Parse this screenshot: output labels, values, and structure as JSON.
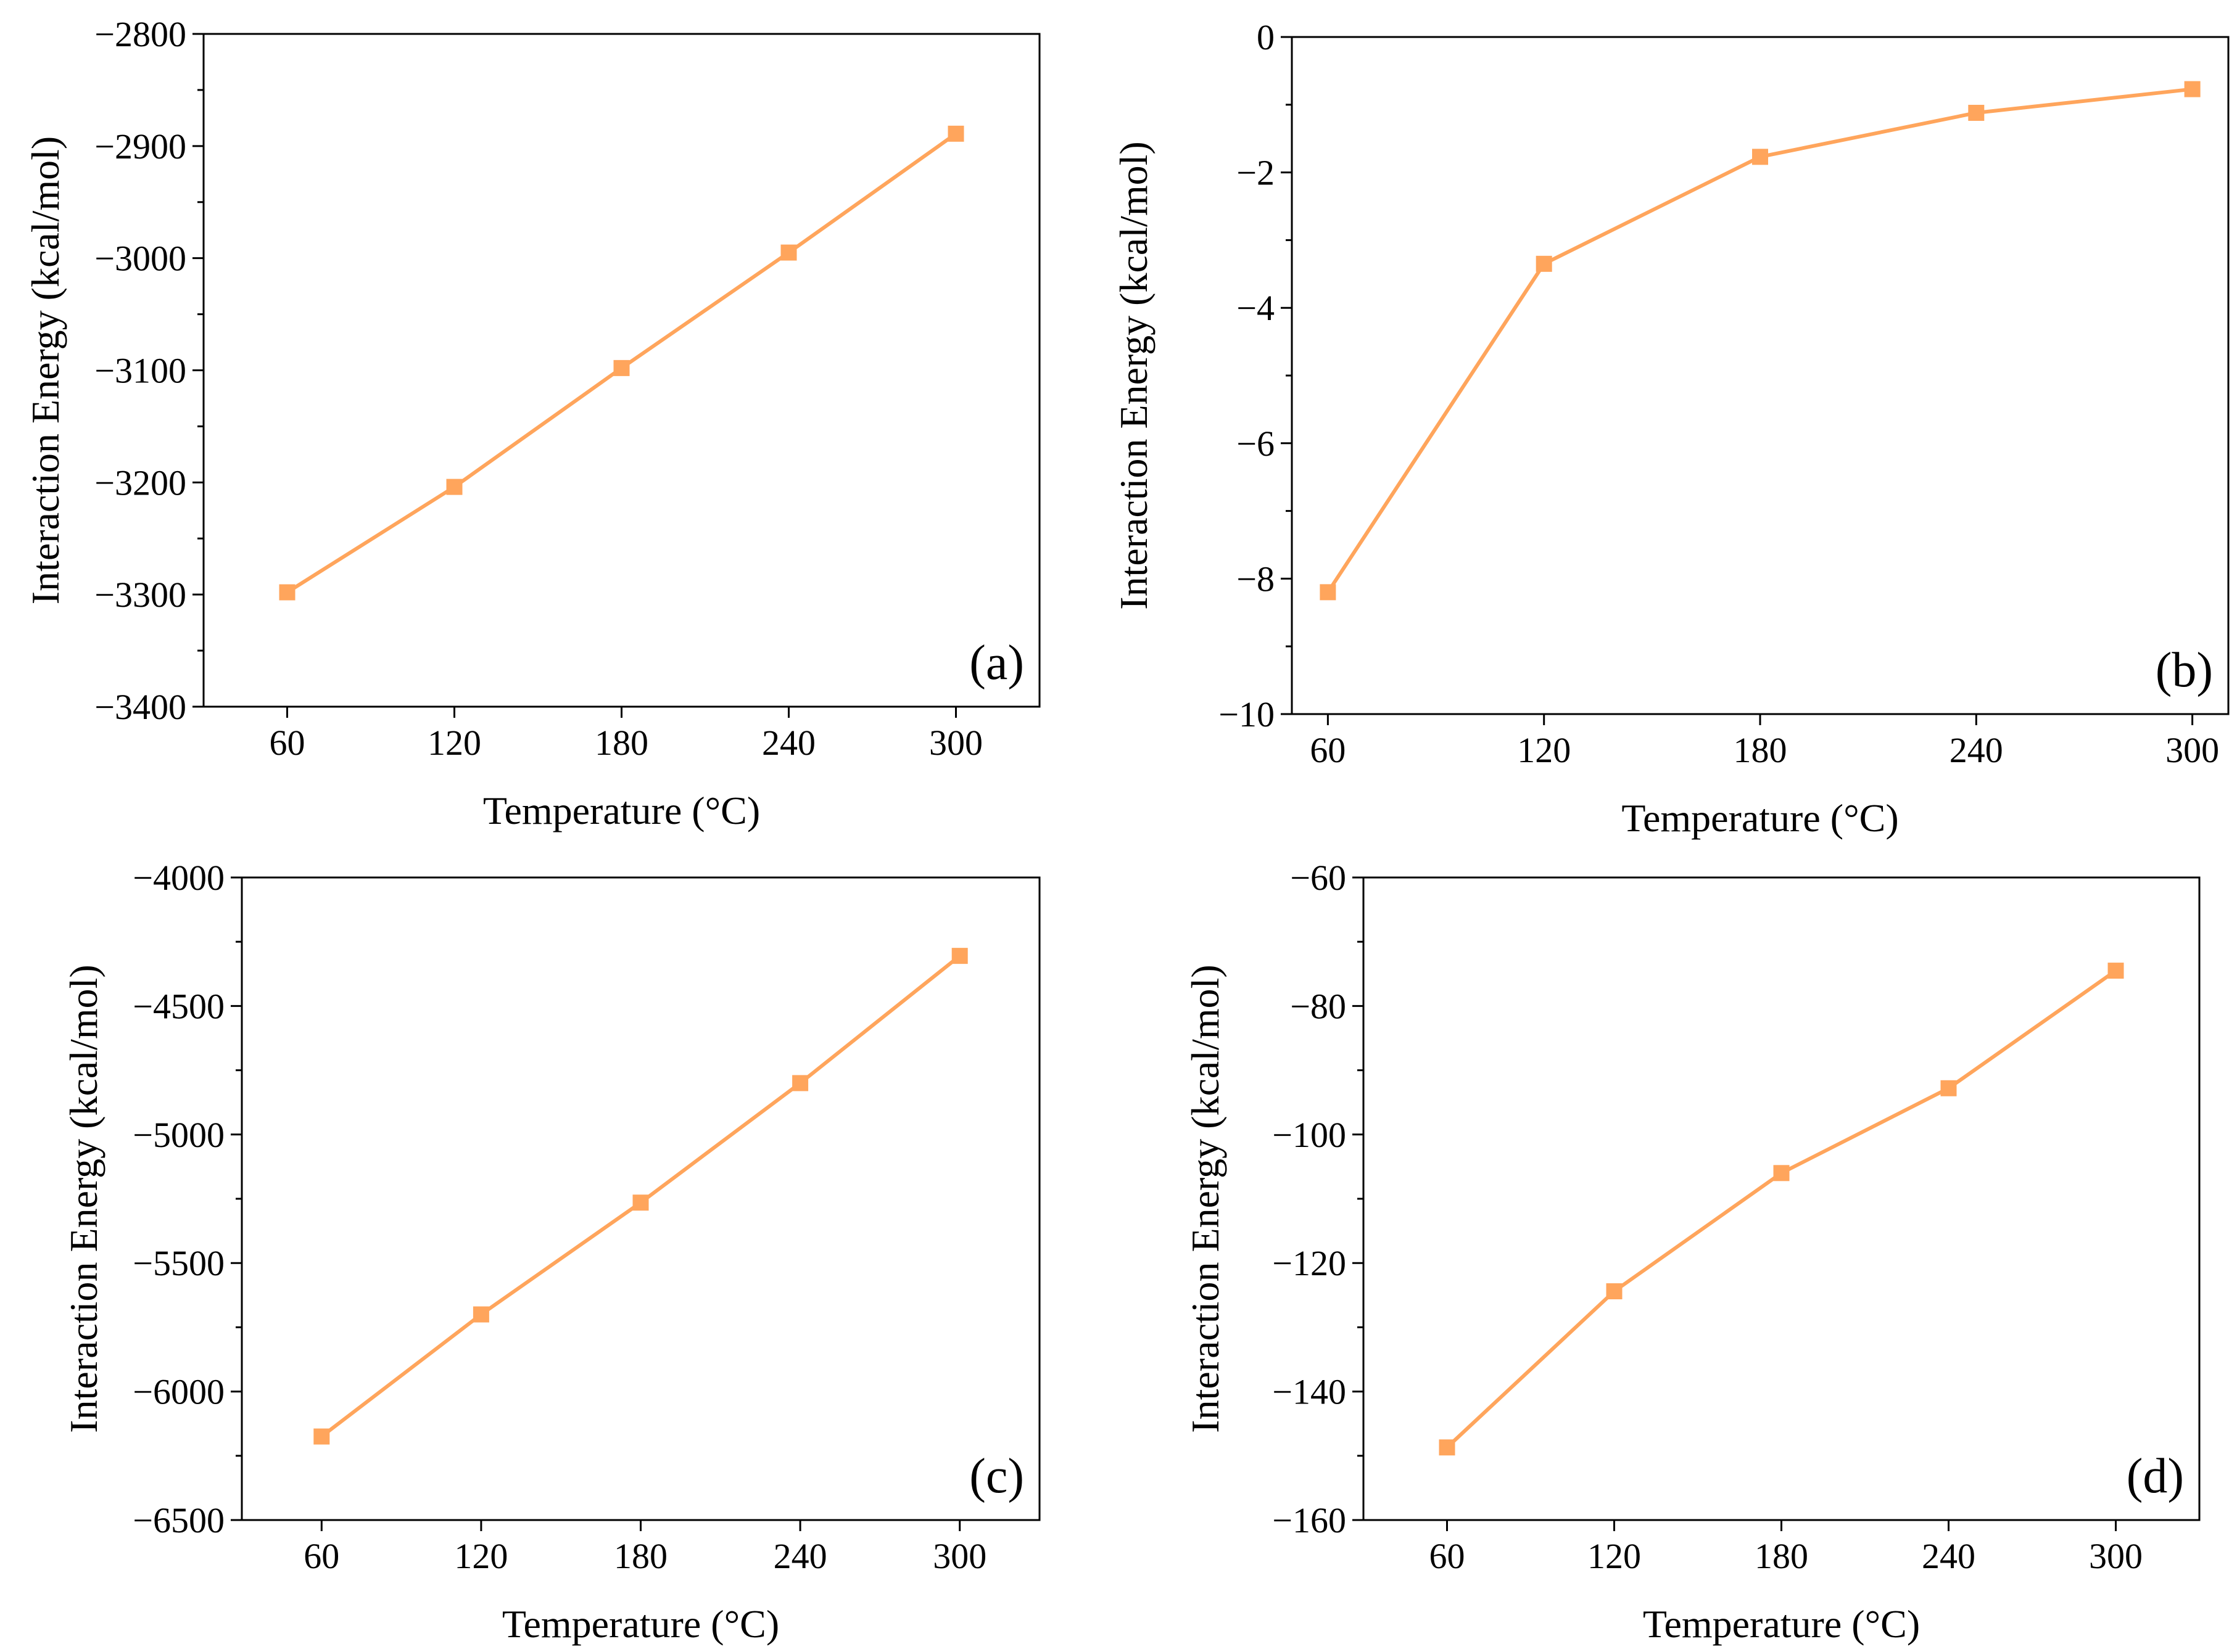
{
  "series_color": "#FFA55C",
  "chart_data": [
    {
      "panel": "a",
      "type": "line",
      "panel_label": "(a)",
      "xlabel": "Temperature (°C)",
      "ylabel": "Interaction Energy (kcal/mol)",
      "x": [
        60,
        120,
        180,
        240,
        300
      ],
      "series": [
        {
          "name": "a",
          "values": [
            -3298,
            -3204,
            -3098,
            -2995,
            -2889
          ]
        }
      ],
      "xticks": [
        60,
        120,
        180,
        240,
        300
      ],
      "xtick_labels": [
        "60",
        "120",
        "180",
        "240",
        "300"
      ],
      "xlim": [
        30,
        330
      ],
      "yticks": [
        -3400,
        -3300,
        -3200,
        -3100,
        -3000,
        -2900,
        -2800
      ],
      "ytick_labels": [
        "−3400",
        "−3300",
        "−3200",
        "−3100",
        "−3000",
        "−2900",
        "−2800"
      ],
      "ylim": [
        -3400,
        -2800
      ],
      "marker": "square"
    },
    {
      "panel": "b",
      "type": "line",
      "panel_label": "(b)",
      "xlabel": "Temperature (°C)",
      "ylabel": "Interaction Energy (kcal/mol)",
      "x": [
        60,
        120,
        180,
        240,
        300
      ],
      "series": [
        {
          "name": "b",
          "values": [
            -8.2,
            -3.35,
            -1.77,
            -1.12,
            -0.77
          ]
        }
      ],
      "xticks": [
        60,
        120,
        180,
        240,
        300
      ],
      "xtick_labels": [
        "60",
        "120",
        "180",
        "240",
        "300"
      ],
      "xlim": [
        50,
        310
      ],
      "yticks": [
        -10,
        -8,
        -6,
        -4,
        -2,
        0
      ],
      "ytick_labels": [
        "−10",
        "−8",
        "−6",
        "−4",
        "−2",
        "0"
      ],
      "ylim": [
        -10,
        0
      ],
      "marker": "square"
    },
    {
      "panel": "c",
      "type": "line",
      "panel_label": "(c)",
      "xlabel": "Temperature (°C)",
      "ylabel": "Interaction Energy (kcal/mol)",
      "x": [
        60,
        120,
        180,
        240,
        300
      ],
      "series": [
        {
          "name": "c",
          "values": [
            -6175,
            -5700,
            -5265,
            -4800,
            -4305
          ]
        }
      ],
      "xticks": [
        60,
        120,
        180,
        240,
        300
      ],
      "xtick_labels": [
        "60",
        "120",
        "180",
        "240",
        "300"
      ],
      "xlim": [
        30,
        330
      ],
      "yticks": [
        -6500,
        -6000,
        -5500,
        -5000,
        -4500,
        -4000
      ],
      "ytick_labels": [
        "−6500",
        "−6000",
        "−5500",
        "−5000",
        "−4500",
        "−4000"
      ],
      "ylim": [
        -6500,
        -4000
      ],
      "marker": "square"
    },
    {
      "panel": "d",
      "type": "line",
      "panel_label": "(d)",
      "xlabel": "Temperature (°C)",
      "ylabel": "Interaction Energy (kcal/mol)",
      "x": [
        60,
        120,
        180,
        240,
        300
      ],
      "series": [
        {
          "name": "d",
          "values": [
            -148.7,
            -124.4,
            -106.0,
            -92.8,
            -74.5
          ]
        }
      ],
      "xticks": [
        60,
        120,
        180,
        240,
        300
      ],
      "xtick_labels": [
        "60",
        "120",
        "180",
        "240",
        "300"
      ],
      "xlim": [
        30,
        330
      ],
      "yticks": [
        -160,
        -140,
        -120,
        -100,
        -80,
        -60
      ],
      "ytick_labels": [
        "−160",
        "−140",
        "−120",
        "−100",
        "−80",
        "−60"
      ],
      "ylim": [
        -160,
        -60
      ],
      "marker": "square"
    }
  ]
}
